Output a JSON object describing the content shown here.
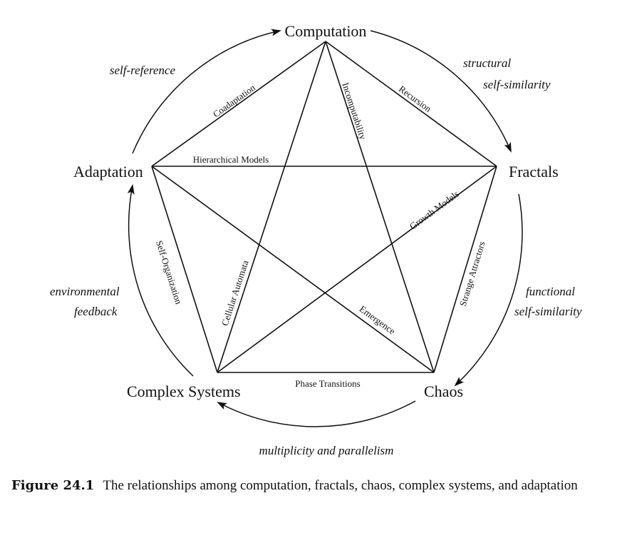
{
  "nodes": {
    "computation": "Computation",
    "fractals": "Fractals",
    "chaos": "Chaos",
    "complex_systems": "Complex Systems",
    "adaptation": "Adaptation"
  },
  "edges": {
    "coadaptation": "Coadaptation",
    "recursion": "Recursion",
    "incomputability": "Incomputability",
    "hierarchical_models": "Hierarchical Models",
    "growth_models": "Growth Models",
    "self_organization": "Self-Organization",
    "cellular_automata": "Cellular Automata",
    "strange_attractors": "Strange Attractors",
    "emergence": "Emergence",
    "phase_transitions": "Phase Transitions"
  },
  "arcs": {
    "self_reference": "self-reference",
    "structural": "structural",
    "self_similarity_1": "self-similarity",
    "functional": "functional",
    "self_similarity_2": "self-similarity",
    "multiplicity": "multiplicity and parallelism",
    "environmental": "environmental",
    "feedback": "feedback"
  },
  "caption": {
    "number": "Figure 24.1",
    "text": "The relationships among computation, fractals, chaos, complex systems, and adaptation"
  }
}
